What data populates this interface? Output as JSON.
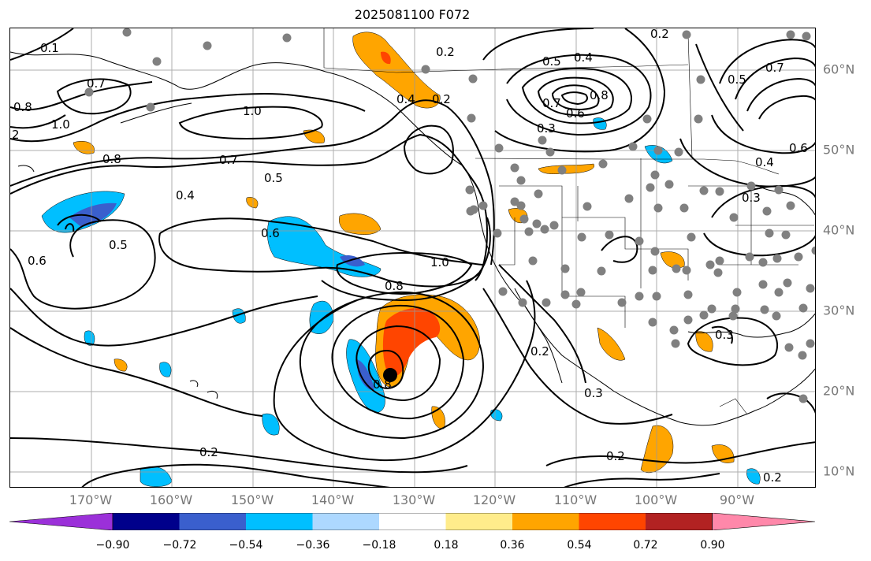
{
  "title": "2025081100 F072",
  "longitude_labels": [
    "170°W",
    "160°W",
    "150°W",
    "140°W",
    "130°W",
    "120°W",
    "110°W",
    "100°W",
    "90°W"
  ],
  "latitude_labels": [
    "60°N",
    "50°N",
    "40°N",
    "30°N",
    "20°N",
    "10°N"
  ],
  "colorbar": {
    "tick_labels": [
      "−0.90",
      "−0.72",
      "−0.54",
      "−0.36",
      "−0.18",
      "0.18",
      "0.36",
      "0.54",
      "0.72",
      "0.90"
    ],
    "colors": [
      "#9b30d9",
      "#00008b",
      "#3a5fcd",
      "#00bfff",
      "#add8ff",
      "#ffffff",
      "#ffec8b",
      "#ffa500",
      "#ff4500",
      "#b22222",
      "#ff88aa"
    ]
  },
  "contour_labels": [
    "0.1",
    "0.7",
    "0.8",
    "1.0",
    "2",
    "0.8",
    "0.7",
    "0.5",
    "0.4",
    "0.5",
    "0.6",
    "0.8",
    "1.0",
    "0.6",
    "0.8",
    "0.2",
    "0.2",
    "0.5",
    "0.4",
    "0.7",
    "0.8",
    "0.6",
    "0.3",
    "0.2",
    "0.5",
    "0.7",
    "0.4",
    "0.3",
    "0.3",
    "0.2",
    "0.3",
    "0.6",
    "1.0",
    "0.2",
    "0.2",
    "0.2",
    "0.4"
  ],
  "colors": {
    "frame": "#000000",
    "grid": "#999999",
    "axis_label": "#777777",
    "station_dot": "#808080"
  }
}
